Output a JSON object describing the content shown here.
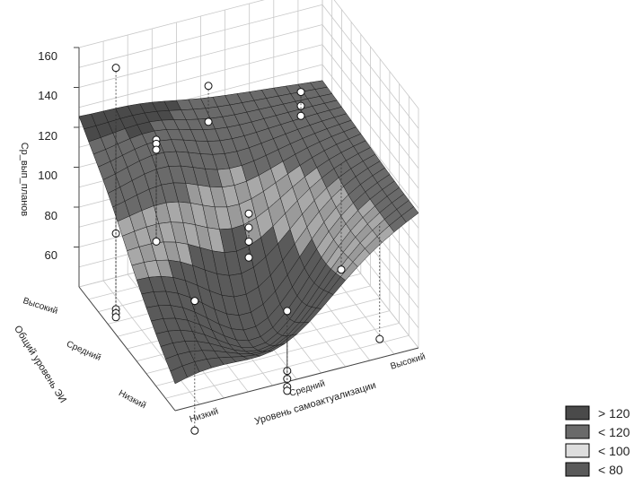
{
  "chart_data": {
    "type": "surface3d",
    "zlabel": "Ср_вып_планов",
    "xlabel": "Уровень самоактуализации",
    "ylabel": "Общий уровень ЭИ",
    "zticks": [
      "160",
      "140",
      "120",
      "100",
      "80",
      "60"
    ],
    "zlim": [
      40,
      160
    ],
    "x_categories": [
      "Низкий",
      "Средний",
      "Высокий"
    ],
    "y_categories": [
      "Низкий",
      "Средний",
      "Высокий"
    ],
    "legend": [
      {
        "label": "> 120",
        "color": "#4a4a4a"
      },
      {
        "label": "< 120",
        "color": "#6a6a6a"
      },
      {
        "label": "< 100",
        "color": "#dedede"
      },
      {
        "label": "< 80",
        "color": "#5a5a5a"
      }
    ],
    "corner_values": {
      "x_low_y_high": 125,
      "x_high_y_high": 112,
      "x_low_y_low": 55,
      "x_high_y_low": 108
    },
    "points": [
      {
        "x": "Низкий",
        "y": "Высокий",
        "z": 151
      },
      {
        "x": "Низкий",
        "y": "Высокий",
        "z": 68
      },
      {
        "x": "Низкий",
        "y": "Высокий",
        "z": 30
      },
      {
        "x": "Низкий",
        "y": "Высокий",
        "z": 28
      },
      {
        "x": "Низкий",
        "y": "Высокий",
        "z": 26
      },
      {
        "x": "Низкий",
        "y": "Средний",
        "z": 141
      },
      {
        "x": "Низкий",
        "y": "Средний",
        "z": 139
      },
      {
        "x": "Низкий",
        "y": "Средний",
        "z": 136
      },
      {
        "x": "Низкий",
        "y": "Средний",
        "z": 90
      },
      {
        "x": "Низкий",
        "y": "Низкий",
        "z": 85
      },
      {
        "x": "Низкий",
        "y": "Низкий",
        "z": 20
      },
      {
        "x": "Средний",
        "y": "Высокий",
        "z": 130
      },
      {
        "x": "Средний",
        "y": "Высокий",
        "z": 112
      },
      {
        "x": "Средний",
        "y": "Средний",
        "z": 92
      },
      {
        "x": "Средний",
        "y": "Средний",
        "z": 85
      },
      {
        "x": "Средний",
        "y": "Средний",
        "z": 78
      },
      {
        "x": "Средний",
        "y": "Средний",
        "z": 70
      },
      {
        "x": "Средний",
        "y": "Низкий",
        "z": 68
      },
      {
        "x": "Средний",
        "y": "Низкий",
        "z": 38
      },
      {
        "x": "Средний",
        "y": "Низкий",
        "z": 34
      },
      {
        "x": "Средний",
        "y": "Низкий",
        "z": 30
      },
      {
        "x": "Средний",
        "y": "Низкий",
        "z": 28
      },
      {
        "x": "Высокий",
        "y": "Высокий",
        "z": 115
      },
      {
        "x": "Высокий",
        "y": "Высокий",
        "z": 108
      },
      {
        "x": "Высокий",
        "y": "Высокий",
        "z": 103
      },
      {
        "x": "Высокий",
        "y": "Средний",
        "z": 52
      },
      {
        "x": "Высокий",
        "y": "Низкий",
        "z": 42
      }
    ]
  }
}
